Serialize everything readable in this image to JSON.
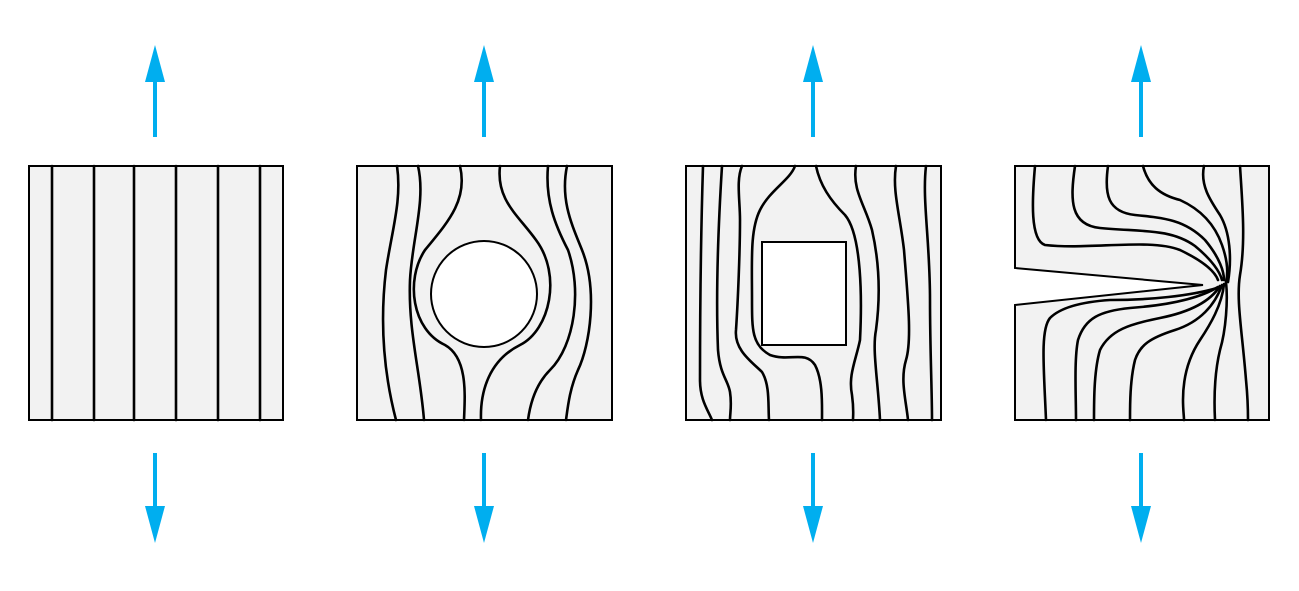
{
  "figure": {
    "description_free": true,
    "panels": [
      {
        "id": "uniform",
        "feature": "none"
      },
      {
        "id": "circular-hole",
        "feature": "circle"
      },
      {
        "id": "rectangular-hole",
        "feature": "rectangle"
      },
      {
        "id": "edge-notch",
        "feature": "notch"
      }
    ],
    "colors": {
      "arrow": "#00aeef",
      "plate": "#f2f2f2",
      "line": "#000000",
      "hole": "#ffffff"
    }
  }
}
